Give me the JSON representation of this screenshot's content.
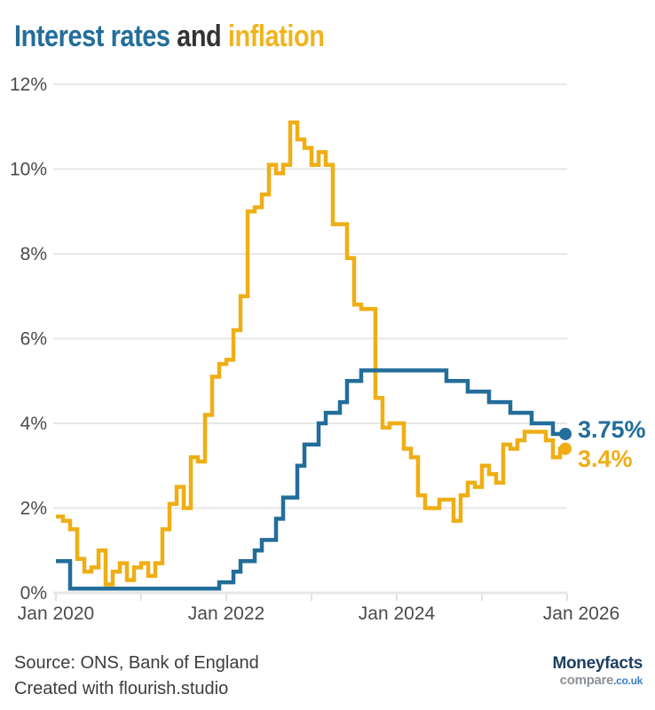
{
  "title": {
    "part_interest": "Interest rates",
    "part_and": " and ",
    "part_inflation": "inflation"
  },
  "colors": {
    "interest_blue": "#236D9A",
    "inflation_gold": "#EFAE14",
    "title_and": "#333333",
    "gridline": "#E7E7E7",
    "axis_line": "#E2E2E2",
    "axis_text": "#4B4B4B"
  },
  "chart_data": {
    "type": "line",
    "subtype": "step-after",
    "title": "Interest rates and inflation",
    "x_unit": "month",
    "x_range": [
      "Jan 2020",
      "Dec 2025"
    ],
    "ylim": [
      0,
      12
    ],
    "grid": "horizontal",
    "legend_position": "none",
    "x_tick_labels": [
      "Jan 2020",
      "Jan 2022",
      "Jan 2024",
      "Jan 2026"
    ],
    "y_tick_values": [
      0,
      2,
      4,
      6,
      8,
      10,
      12
    ],
    "y_tick_labels": [
      "0%",
      "2%",
      "4%",
      "6%",
      "8%",
      "10%",
      "12%"
    ],
    "series": [
      {
        "name": "Interest rates",
        "color": "#236D9A",
        "end_label": "3.75%",
        "values": [
          0.75,
          0.75,
          0.1,
          0.1,
          0.1,
          0.1,
          0.1,
          0.1,
          0.1,
          0.1,
          0.1,
          0.1,
          0.1,
          0.1,
          0.1,
          0.1,
          0.1,
          0.1,
          0.1,
          0.1,
          0.1,
          0.1,
          0.1,
          0.25,
          0.25,
          0.5,
          0.75,
          0.75,
          1.0,
          1.25,
          1.25,
          1.75,
          2.25,
          2.25,
          3.0,
          3.5,
          3.5,
          4.0,
          4.25,
          4.25,
          4.5,
          5.0,
          5.0,
          5.25,
          5.25,
          5.25,
          5.25,
          5.25,
          5.25,
          5.25,
          5.25,
          5.25,
          5.25,
          5.25,
          5.25,
          5.0,
          5.0,
          5.0,
          4.75,
          4.75,
          4.75,
          4.5,
          4.5,
          4.5,
          4.25,
          4.25,
          4.25,
          4.0,
          4.0,
          4.0,
          3.75,
          3.75
        ]
      },
      {
        "name": "Inflation",
        "color": "#EFAE14",
        "end_label": "3.4%",
        "values": [
          1.8,
          1.7,
          1.5,
          0.8,
          0.5,
          0.6,
          1.0,
          0.2,
          0.5,
          0.7,
          0.3,
          0.6,
          0.7,
          0.4,
          0.7,
          1.5,
          2.1,
          2.5,
          2.0,
          3.2,
          3.1,
          4.2,
          5.1,
          5.4,
          5.5,
          6.2,
          7.0,
          9.0,
          9.1,
          9.4,
          10.1,
          9.9,
          10.1,
          11.1,
          10.7,
          10.5,
          10.1,
          10.4,
          10.1,
          8.7,
          8.7,
          7.9,
          6.8,
          6.7,
          6.7,
          4.6,
          3.9,
          4.0,
          4.0,
          3.4,
          3.2,
          2.3,
          2.0,
          2.0,
          2.2,
          2.2,
          1.7,
          2.3,
          2.6,
          2.5,
          3.0,
          2.8,
          2.6,
          3.5,
          3.4,
          3.6,
          3.8,
          3.8,
          3.8,
          3.6,
          3.2,
          3.4
        ]
      }
    ]
  },
  "footer": {
    "source": "Source: ONS, Bank of England",
    "created": "Created with flourish.studio"
  },
  "logo": {
    "line1": "Moneyfacts",
    "line2": "compare",
    "line2_suffix": ".co.uk"
  }
}
